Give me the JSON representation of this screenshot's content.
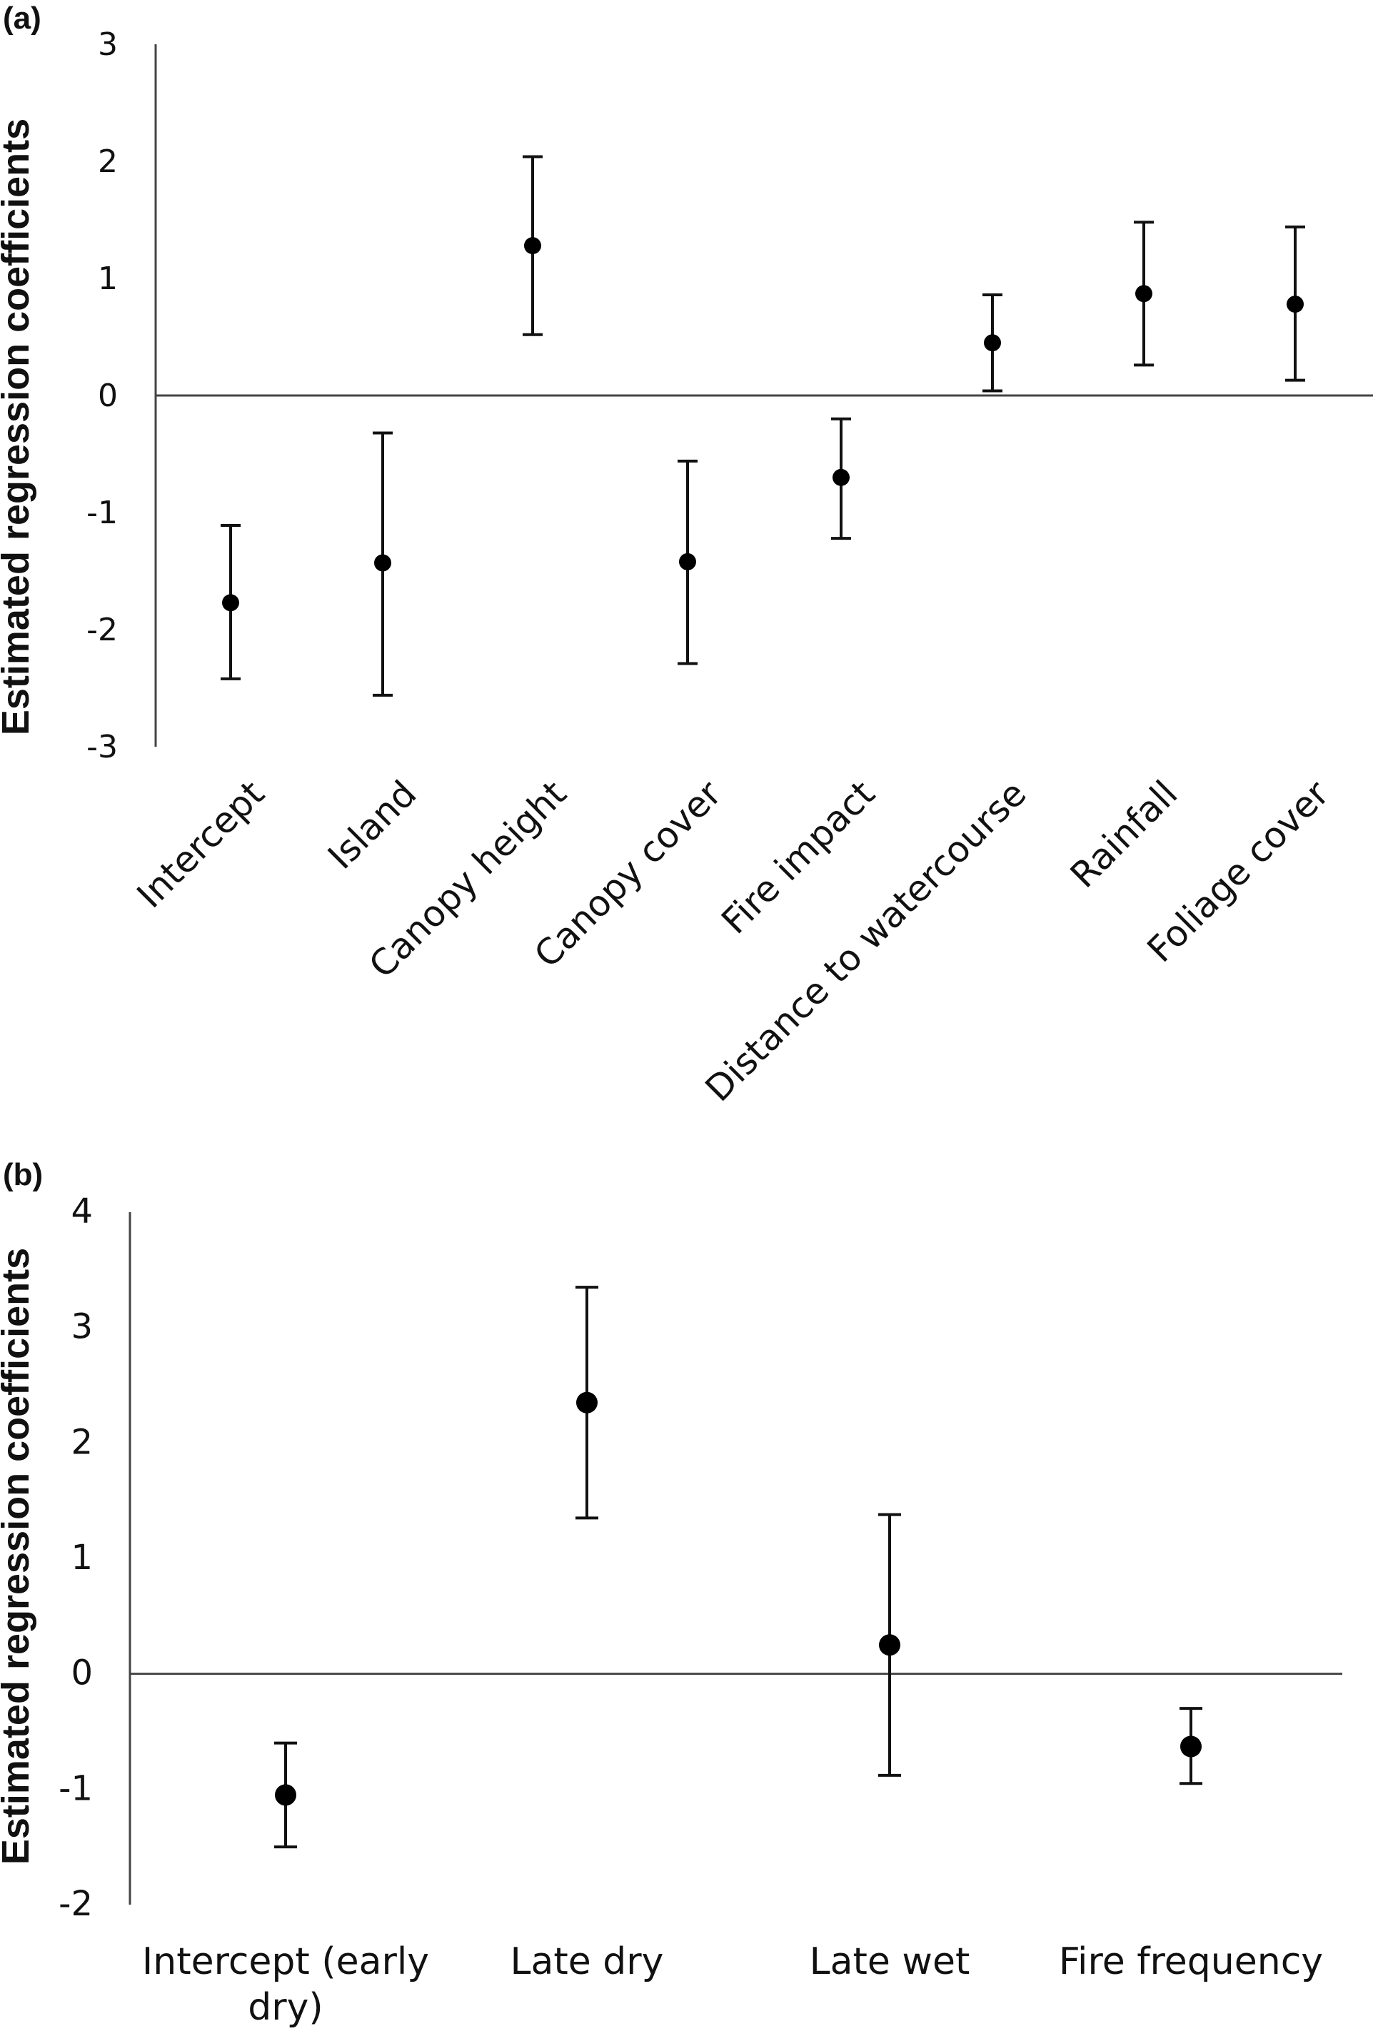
{
  "chart_data": [
    {
      "type": "scatter",
      "panel_label": "(a)",
      "ylabel": "Estimated regression coefficients",
      "xlabel": "",
      "ylim": [
        -3,
        3
      ],
      "yticks": [
        "3",
        "2",
        "1",
        "0",
        "-1",
        "-2",
        "-3"
      ],
      "ytick_values": [
        3,
        2,
        1,
        0,
        -1,
        -2,
        -3
      ],
      "categories": [
        "Intercept",
        "Island",
        "Canopy height",
        "Canopy cover",
        "Fire impact",
        "Distance to watercourse",
        "Rainfall",
        "Foliage cover"
      ],
      "values": [
        -1.77,
        -1.43,
        1.28,
        -1.42,
        -0.7,
        0.45,
        0.87,
        0.78
      ],
      "lower": [
        -2.42,
        -2.56,
        0.52,
        -2.29,
        -1.22,
        0.04,
        0.26,
        0.13
      ],
      "upper": [
        -1.11,
        -0.32,
        2.04,
        -0.56,
        -0.2,
        0.86,
        1.48,
        1.44
      ],
      "error_bars": true,
      "grid": false
    },
    {
      "type": "scatter",
      "panel_label": "(b)",
      "ylabel": "Estimated regression coefficients",
      "xlabel": "",
      "ylim": [
        -2,
        4
      ],
      "yticks": [
        "4",
        "3",
        "2",
        "1",
        "0",
        "-1",
        "-2"
      ],
      "ytick_values": [
        4,
        3,
        2,
        1,
        0,
        -1,
        -2
      ],
      "categories": [
        "Intercept (early dry)",
        "Late dry",
        "Late wet",
        "Fire frequency"
      ],
      "category_lines": [
        [
          "Intercept (early",
          "dry)"
        ],
        [
          "Late dry"
        ],
        [
          "Late wet"
        ],
        [
          "Fire frequency"
        ]
      ],
      "values": [
        -1.05,
        2.35,
        0.25,
        -0.63
      ],
      "lower": [
        -1.5,
        1.35,
        -0.88,
        -0.95
      ],
      "upper": [
        -0.6,
        3.35,
        1.38,
        -0.3
      ],
      "error_bars": true,
      "grid": false
    }
  ]
}
